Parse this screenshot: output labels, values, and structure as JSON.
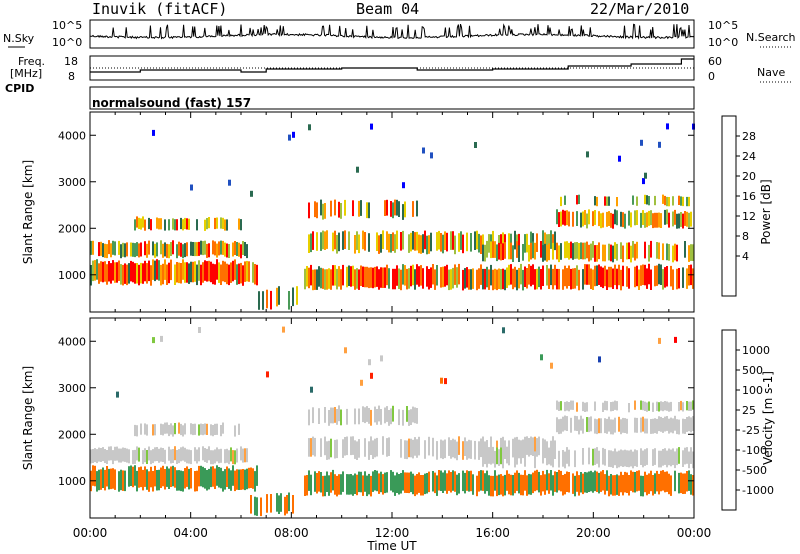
{
  "header": {
    "station": "Inuvik (fitACF)",
    "beam": "Beam 04",
    "date": "22/Mar/2010"
  },
  "labels": {
    "nsky": "N.Sky",
    "nsearch": "N.Search",
    "freq": "Freq.",
    "mhz": "[MHz]",
    "nave": "Nave",
    "cpid": "CPID",
    "program": "normalsound (fast) 157"
  },
  "noise_panel": {
    "left_ticks": [
      "10^5",
      "10^0"
    ],
    "right_ticks": [
      "10^5",
      "10^0"
    ]
  },
  "freq_panel": {
    "left_ticks": [
      "18",
      "8"
    ],
    "right_ticks": [
      "60",
      "0"
    ]
  },
  "chart_data": [
    {
      "type": "heatmap",
      "panel": "power",
      "ylabel": "Slant Range [km]",
      "xlabel": "Time UT",
      "x_ticks": [
        "00:00",
        "04:00",
        "08:00",
        "12:00",
        "16:00",
        "20:00",
        "00:00"
      ],
      "y_ticks": [
        "1000",
        "2000",
        "3000",
        "4000"
      ],
      "ylim": [
        200,
        4500
      ],
      "colorbar": {
        "label": "Power [dB]",
        "ticks": [
          "28",
          "24",
          "20",
          "16",
          "12",
          "8",
          "4"
        ],
        "colors": [
          "#ff0000",
          "#ff7000",
          "#ffa000",
          "#e8d000",
          "#a0c040",
          "#4a9a58",
          "#2a6a50",
          "#2050c0",
          "#0000ff"
        ]
      }
    },
    {
      "type": "heatmap",
      "panel": "velocity",
      "ylabel": "Slant Range [km]",
      "xlabel": "Time UT",
      "x_ticks": [
        "00:00",
        "04:00",
        "08:00",
        "12:00",
        "16:00",
        "20:00",
        "00:00"
      ],
      "y_ticks": [
        "1000",
        "2000",
        "3000",
        "4000"
      ],
      "ylim": [
        200,
        4500
      ],
      "colorbar": {
        "label": "Velocity [m s-1]",
        "ticks": [
          "1000",
          "500",
          "100",
          "25",
          "-25",
          "-100",
          "-500",
          "-1000"
        ],
        "colors": [
          "#1840b0",
          "#2a6a68",
          "#3a9a58",
          "#80c840",
          "#c8c8c8",
          "#ffa040",
          "#ff7000",
          "#ff2000",
          "#ff0000"
        ]
      }
    }
  ]
}
